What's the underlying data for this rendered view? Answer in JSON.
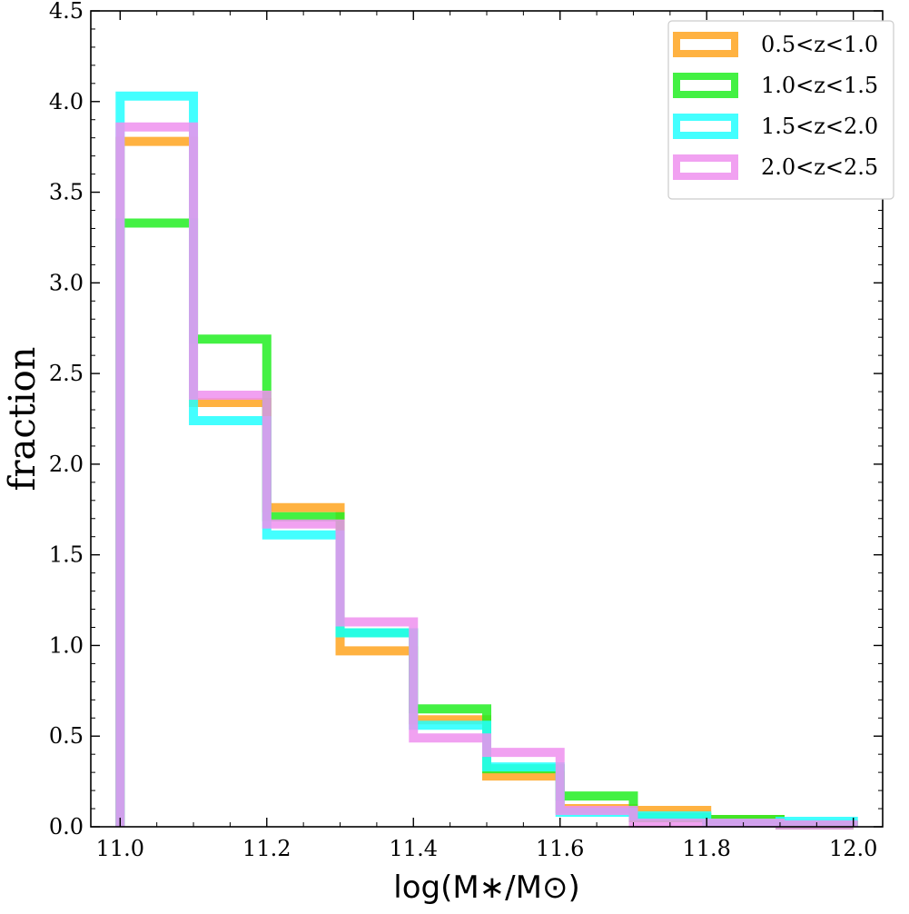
{
  "chart_data": {
    "type": "histogram",
    "title": "",
    "xlabel": "log(M∗/M⊙)",
    "ylabel": "fraction",
    "xlim": [
      10.96,
      12.04
    ],
    "ylim": [
      0.0,
      4.5
    ],
    "xticks": [
      11.0,
      11.2,
      11.4,
      11.6,
      11.8,
      12.0
    ],
    "xtick_labels": [
      "11.0",
      "11.2",
      "11.4",
      "11.6",
      "11.8",
      "12.0"
    ],
    "yticks": [
      0.0,
      0.5,
      1.0,
      1.5,
      2.0,
      2.5,
      3.0,
      3.5,
      4.0,
      4.5
    ],
    "ytick_labels": [
      "0.0",
      "0.5",
      "1.0",
      "1.5",
      "2.0",
      "2.5",
      "3.0",
      "3.5",
      "4.0",
      "4.5"
    ],
    "grid": false,
    "legend_position": "top-right",
    "bin_edges": [
      11.0,
      11.1,
      11.2,
      11.3,
      11.4,
      11.5,
      11.6,
      11.7,
      11.8,
      11.9,
      12.0
    ],
    "series": [
      {
        "name": "0.5<z<1.0",
        "color": "#FFA520",
        "values": [
          3.78,
          2.34,
          1.76,
          0.97,
          0.59,
          0.28,
          0.1,
          0.09,
          0.04,
          0.01
        ]
      },
      {
        "name": "1.0<z<1.5",
        "color": "#22EE22",
        "values": [
          3.33,
          2.69,
          1.71,
          1.07,
          0.65,
          0.32,
          0.17,
          0.05,
          0.04,
          0.01
        ]
      },
      {
        "name": "1.5<z<2.0",
        "color": "#22FFFF",
        "values": [
          4.03,
          2.24,
          1.61,
          1.07,
          0.56,
          0.33,
          0.08,
          0.06,
          0.02,
          0.03
        ]
      },
      {
        "name": "2.0<z<2.5",
        "color": "#EE90EE",
        "values": [
          3.86,
          2.38,
          1.67,
          1.13,
          0.49,
          0.41,
          0.09,
          0.02,
          0.02,
          0.01
        ]
      }
    ],
    "overlap_color": "#C0A0E8"
  }
}
